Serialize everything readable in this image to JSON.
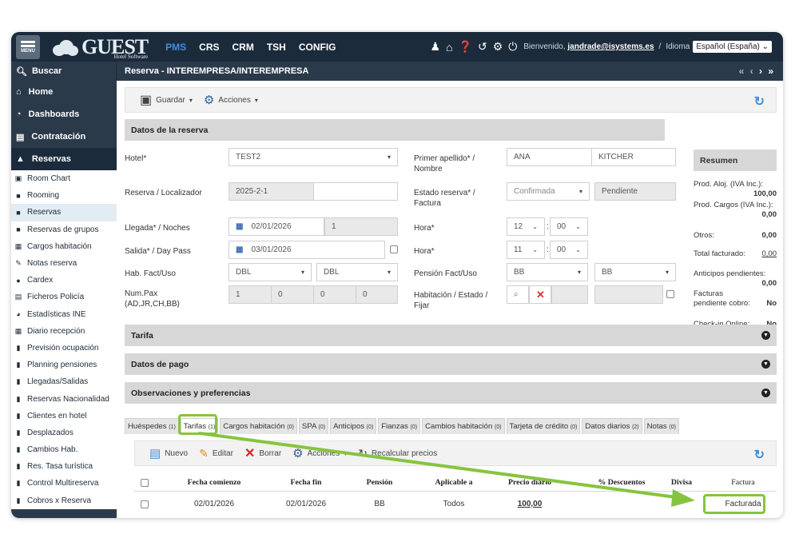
{
  "header": {
    "menu_label": "MENU",
    "logo_main": "GUEST",
    "logo_sub": "Hotel Software",
    "nav": [
      "PMS",
      "CRS",
      "CRM",
      "TSH",
      "CONFIG"
    ],
    "welcome_prefix": "Bienvenido,",
    "user_email": "jandrade@isystems.es",
    "separator": "/",
    "language_label": "Idioma",
    "language_value": "Español (España)"
  },
  "subbar": {
    "search_label": "Buscar",
    "page_title": "Reserva - INTEREMPRESA/INTEREMPRESA"
  },
  "sidebar": {
    "main": [
      {
        "label": "Home",
        "icon": "home-icon"
      },
      {
        "label": "Dashboards",
        "icon": "gauge-icon"
      },
      {
        "label": "Contratación",
        "icon": "document-icon"
      },
      {
        "label": "Reservas",
        "icon": "warning-triangle-icon"
      }
    ],
    "items": [
      {
        "label": "Room Chart",
        "icon": "calendar-icon"
      },
      {
        "label": "Rooming",
        "icon": "briefcase-icon"
      },
      {
        "label": "Reservas",
        "icon": "briefcase-icon"
      },
      {
        "label": "Reservas de grupos",
        "icon": "briefcase-icon"
      },
      {
        "label": "Cargos habitación",
        "icon": "notepad-icon"
      },
      {
        "label": "Notas reserva",
        "icon": "edit-icon"
      },
      {
        "label": "Cardex",
        "icon": "user-icon"
      },
      {
        "label": "Ficheros Policía",
        "icon": "id-card-icon"
      },
      {
        "label": "Estadísticas INE",
        "icon": "pie-chart-icon"
      },
      {
        "label": "Diario recepción",
        "icon": "grid-icon"
      },
      {
        "label": "Previsión ocupación",
        "icon": "file-icon"
      },
      {
        "label": "Planning pensiones",
        "icon": "file-icon"
      },
      {
        "label": "Llegadas/Salidas",
        "icon": "file-icon"
      },
      {
        "label": "Reservas Nacionalidad",
        "icon": "file-icon"
      },
      {
        "label": "Clientes en hotel",
        "icon": "file-icon"
      },
      {
        "label": "Desplazados",
        "icon": "file-icon"
      },
      {
        "label": "Cambios Hab.",
        "icon": "file-icon"
      },
      {
        "label": "Res. Tasa turística",
        "icon": "file-icon"
      },
      {
        "label": "Control Multireserva",
        "icon": "file-icon"
      },
      {
        "label": "Cobros x Reserva",
        "icon": "file-icon"
      }
    ]
  },
  "toolbar": {
    "save_label": "Guardar",
    "actions_label": "Acciones"
  },
  "datos": {
    "section_title": "Datos de la reserva",
    "hotel_label": "Hotel*",
    "hotel_value": "TEST2",
    "surname_label": "Primer apellido* / Nombre",
    "surname_value": "ANA",
    "name_value": "KITCHER",
    "locator_label": "Reserva / Localizador",
    "locator_value": "2025-2-1",
    "status_label": "Estado reserva* / Factura",
    "status_value": "Confirmada",
    "invoice_status": "Pendiente",
    "arrival_label": "Llegada* / Noches",
    "arrival_value": "02/01/2026",
    "nights_value": "1",
    "arrival_hour_label": "Hora*",
    "arrival_hour": "12",
    "arrival_min": "00",
    "departure_label": "Salida* / Day Pass",
    "departure_value": "03/01/2026",
    "departure_hour_label": "Hora*",
    "departure_hour": "11",
    "departure_min": "00",
    "room_label": "Hab. Fact/Uso",
    "room_fact": "DBL",
    "room_uso": "DBL",
    "board_label": "Pensión Fact/Uso",
    "board_fact": "BB",
    "board_uso": "BB",
    "pax_label": "Num.Pax (AD,JR,CH,BB)",
    "pax_ad": "1",
    "pax_jr": "0",
    "pax_ch": "0",
    "pax_bb": "0",
    "habitacion_label": "Habitación / Estado / Fijar"
  },
  "resumen": {
    "title": "Resumen",
    "prod_aloj_label": "Prod. Aloj. (IVA Inc.):",
    "prod_aloj_value": "100,00",
    "prod_cargos_label": "Prod. Cargos (IVA Inc.):",
    "prod_cargos_value": "0,00",
    "otros_label": "Otros:",
    "otros_value": "0,00",
    "facturado_label": "Total facturado:",
    "facturado_value": "0,00",
    "anticipos_label": "Anticipos pendientes:",
    "anticipos_value": "0,00",
    "facturas_label": "Facturas pendiente cobro:",
    "facturas_value": "No",
    "checkin_label": "Check-in Online:",
    "checkin_value": "No"
  },
  "sections": {
    "tarifa": "Tarifa",
    "pago": "Datos de pago",
    "observaciones": "Observaciones y preferencias"
  },
  "tabs": [
    {
      "label": "Huéspedes",
      "count": "(1)"
    },
    {
      "label": "Tarifas",
      "count": "(1)"
    },
    {
      "label": "Cargos habitación",
      "count": "(0)"
    },
    {
      "label": "SPA",
      "count": "(0)"
    },
    {
      "label": "Anticipos",
      "count": "(0)"
    },
    {
      "label": "Fianzas",
      "count": "(0)"
    },
    {
      "label": "Cambios habitación",
      "count": "(0)"
    },
    {
      "label": "Tarjeta de crédito",
      "count": "(0)"
    },
    {
      "label": "Datos diarios",
      "count": "(2)"
    },
    {
      "label": "Notas",
      "count": "(0)"
    }
  ],
  "tarifas_toolbar": {
    "new_label": "Nuevo",
    "edit_label": "Editar",
    "delete_label": "Borrar",
    "actions_label": "Acciones",
    "recalc_label": "Recalcular precios"
  },
  "tarifas_table": {
    "columns": [
      "Fecha comienzo",
      "Fecha fin",
      "Pensión",
      "Aplicable a",
      "Precio diario",
      "% Descuentos",
      "Divisa",
      "Factura"
    ],
    "rows": [
      {
        "start": "02/01/2026",
        "end": "02/01/2026",
        "board": "BB",
        "applies": "Todos",
        "price": "100,00",
        "discount": "",
        "currency": "",
        "invoice": "Facturada"
      }
    ]
  },
  "colors": {
    "topbar": "#1c2b3c",
    "sidebar": "#2b3a4b",
    "accent": "#3f8fe0",
    "highlight": "#86c440"
  }
}
